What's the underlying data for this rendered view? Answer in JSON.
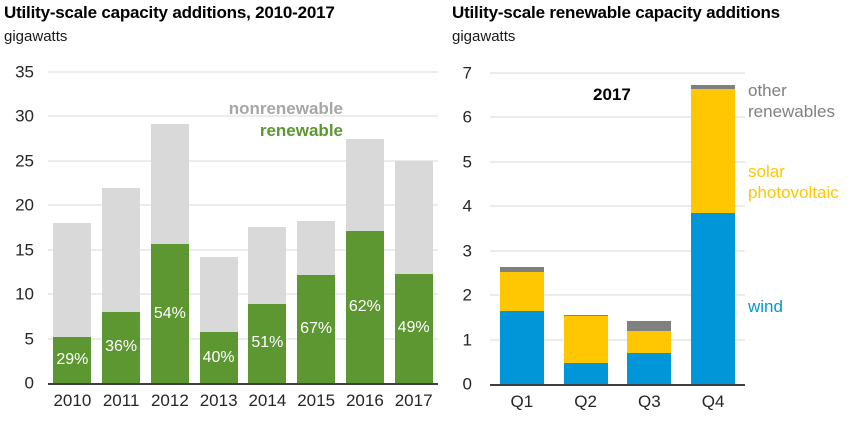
{
  "page": {
    "background": "#ffffff"
  },
  "chart_data": [
    {
      "type": "bar",
      "stacked": true,
      "title": "Utility-scale capacity additions, 2010-2017",
      "subtitle": "gigawatts",
      "categories": [
        "2010",
        "2011",
        "2012",
        "2013",
        "2014",
        "2015",
        "2016",
        "2017"
      ],
      "series": [
        {
          "name": "renewable",
          "color": "#5d9732",
          "values": [
            5.2,
            8.0,
            15.6,
            5.7,
            8.9,
            12.1,
            17.1,
            12.3
          ]
        },
        {
          "name": "nonrenewable",
          "color": "#d9d9d9",
          "values": [
            12.8,
            14.0,
            13.6,
            8.5,
            8.7,
            6.1,
            10.4,
            12.7
          ]
        }
      ],
      "bar_labels": [
        "29%",
        "36%",
        "54%",
        "40%",
        "51%",
        "67%",
        "62%",
        "49%"
      ],
      "bar_label_color": "#ffffff",
      "ylim": [
        0,
        35
      ],
      "ytick_step": 5,
      "grid": true,
      "legend_position": "inside-top-right",
      "legend": [
        {
          "label": "nonrenewable",
          "color": "#a6a6a6"
        },
        {
          "label": "renewable",
          "color": "#5d9732"
        }
      ]
    },
    {
      "type": "bar",
      "stacked": true,
      "title": "Utility-scale renewable capacity additions",
      "subtitle": "gigawatts",
      "annotation": "2017",
      "categories": [
        "Q1",
        "Q2",
        "Q3",
        "Q4"
      ],
      "series": [
        {
          "name": "wind",
          "color": "#0096d7",
          "values": [
            1.65,
            0.47,
            0.7,
            3.85
          ]
        },
        {
          "name": "solar photovoltaic",
          "color": "#ffc702",
          "values": [
            0.87,
            1.05,
            0.5,
            2.8
          ]
        },
        {
          "name": "other renewables",
          "color": "#808080",
          "values": [
            0.11,
            0.04,
            0.23,
            0.08
          ]
        }
      ],
      "ylim": [
        0,
        7
      ],
      "ytick_step": 1,
      "grid": true,
      "legend_position": "right",
      "legend": [
        {
          "label": "other\nrenewables",
          "color": "#808080"
        },
        {
          "label": "solar\nphotovoltaic",
          "color": "#ffc702"
        },
        {
          "label": "wind",
          "color": "#0096d7"
        }
      ]
    }
  ]
}
